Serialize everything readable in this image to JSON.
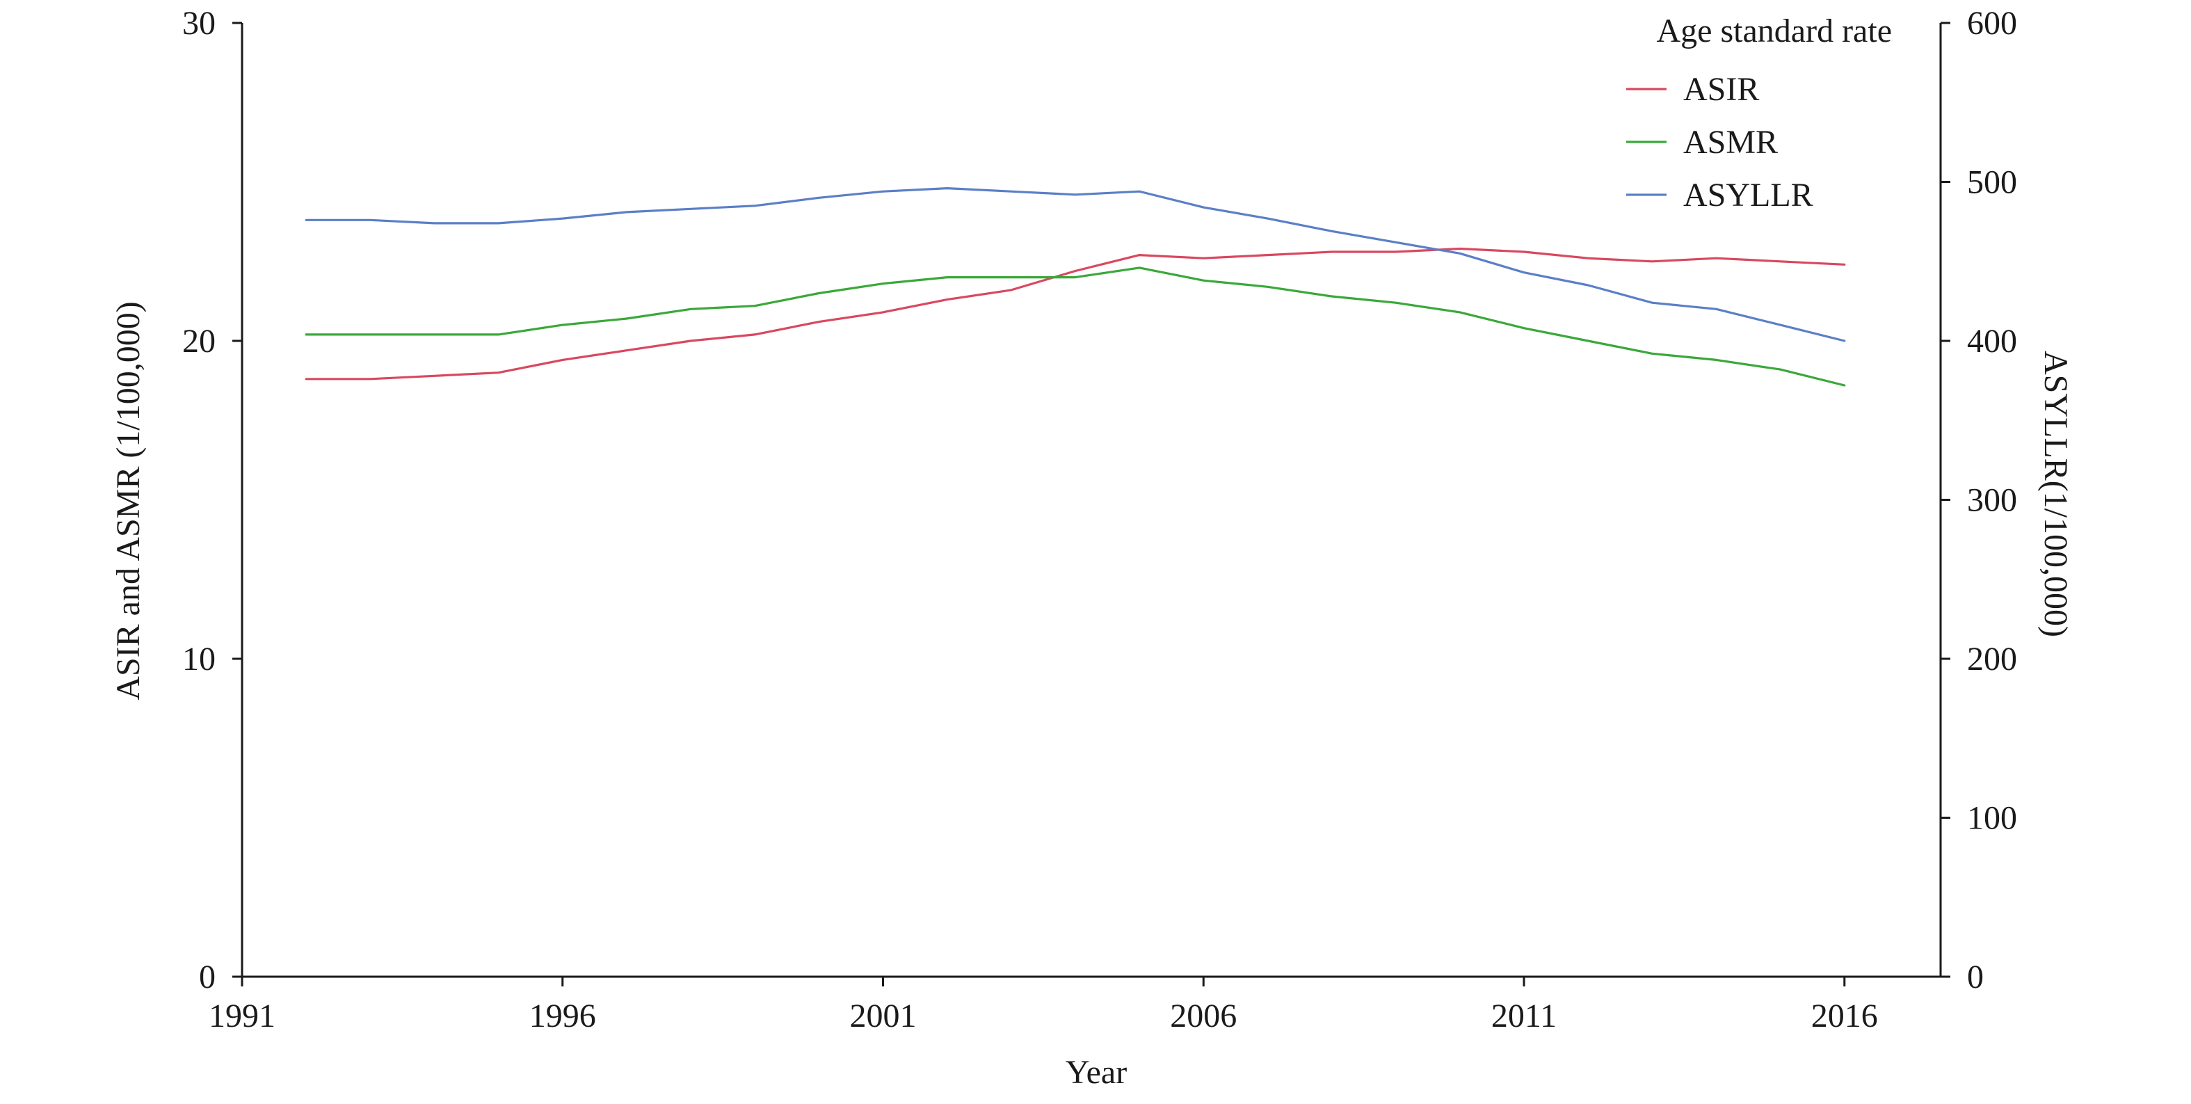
{
  "chart_data": {
    "type": "line",
    "x_axis": {
      "label": "Year",
      "range": [
        1991,
        2017.5
      ],
      "ticks": [
        1991,
        1996,
        2001,
        2006,
        2011,
        2016
      ],
      "tick_labels": [
        "1991",
        "1996",
        "2001",
        "2006",
        "2011",
        "2016"
      ]
    },
    "y_left": {
      "label": "ASIR and ASMR (1/100,000)",
      "range": [
        0,
        30
      ],
      "ticks": [
        0,
        10,
        20,
        30
      ],
      "tick_labels": [
        "0",
        "10",
        "20",
        "30"
      ]
    },
    "y_right": {
      "label": "ASYLLR(1/100,000)",
      "range": [
        0,
        600
      ],
      "ticks": [
        0,
        100,
        200,
        300,
        400,
        500,
        600
      ],
      "tick_labels": [
        "0",
        "100",
        "200",
        "300",
        "400",
        "500",
        "600"
      ]
    },
    "grid": false,
    "legend": {
      "title": "Age standard rate",
      "placement": "top-right"
    },
    "series": [
      {
        "name": "ASIR",
        "axis": "left",
        "color": "#d9485f",
        "x": [
          1992,
          1993,
          1994,
          1995,
          1996,
          1997,
          1998,
          1999,
          2000,
          2001,
          2002,
          2003,
          2004,
          2005,
          2006,
          2007,
          2008,
          2009,
          2010,
          2011,
          2012,
          2013,
          2014,
          2015,
          2016
        ],
        "y": [
          18.8,
          18.8,
          18.9,
          19.0,
          19.4,
          19.7,
          20.0,
          20.2,
          20.6,
          20.9,
          21.3,
          21.6,
          22.2,
          22.7,
          22.6,
          22.7,
          22.8,
          22.8,
          22.9,
          22.8,
          22.6,
          22.5,
          22.6,
          22.5,
          22.4
        ]
      },
      {
        "name": "ASMR",
        "axis": "left",
        "color": "#3aa83a",
        "x": [
          1992,
          1993,
          1994,
          1995,
          1996,
          1997,
          1998,
          1999,
          2000,
          2001,
          2002,
          2003,
          2004,
          2005,
          2006,
          2007,
          2008,
          2009,
          2010,
          2011,
          2012,
          2013,
          2014,
          2015,
          2016
        ],
        "y": [
          20.2,
          20.2,
          20.2,
          20.2,
          20.5,
          20.7,
          21.0,
          21.1,
          21.5,
          21.8,
          22.0,
          22.0,
          22.0,
          22.3,
          21.9,
          21.7,
          21.4,
          21.2,
          20.9,
          20.4,
          20.0,
          19.6,
          19.4,
          19.1,
          18.6
        ]
      },
      {
        "name": "ASYLLR",
        "axis": "right",
        "color": "#5b7fc7",
        "x": [
          1992,
          1993,
          1994,
          1995,
          1996,
          1997,
          1998,
          1999,
          2000,
          2001,
          2002,
          2003,
          2004,
          2005,
          2006,
          2007,
          2008,
          2009,
          2010,
          2011,
          2012,
          2013,
          2014,
          2015,
          2016
        ],
        "y": [
          476,
          476,
          474,
          474,
          477,
          481,
          483,
          485,
          490,
          494,
          496,
          494,
          492,
          494,
          484,
          477,
          469,
          462,
          455,
          443,
          435,
          424,
          420,
          410,
          400
        ]
      }
    ]
  }
}
